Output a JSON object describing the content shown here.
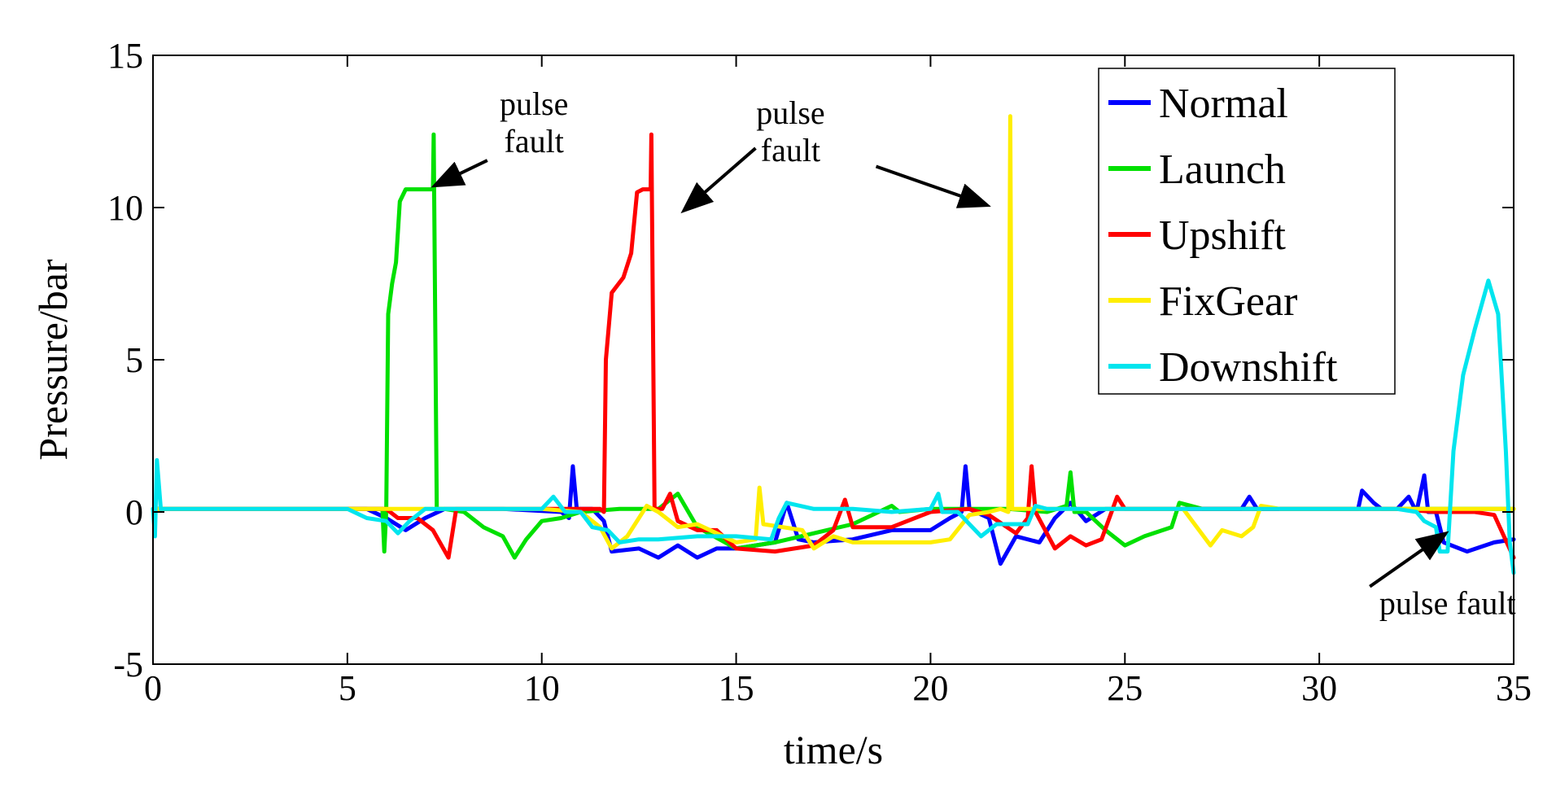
{
  "chart_data": {
    "type": "line",
    "title": "",
    "xlabel": "time/s",
    "ylabel": "Pressure/bar",
    "xlim": [
      0,
      35
    ],
    "ylim": [
      -5,
      15
    ],
    "xticks": [
      0,
      5,
      10,
      15,
      20,
      25,
      30,
      35
    ],
    "yticks": [
      -5,
      0,
      5,
      10,
      15
    ],
    "legend_position": "top-right",
    "grid": false,
    "series": [
      {
        "name": "Normal",
        "color": "#0000ff",
        "points": [
          [
            0,
            0.1
          ],
          [
            2,
            0.1
          ],
          [
            4,
            0.1
          ],
          [
            5.5,
            0.1
          ],
          [
            6,
            -0.2
          ],
          [
            6.5,
            -0.6
          ],
          [
            7,
            -0.2
          ],
          [
            7.5,
            0.1
          ],
          [
            9,
            0.1
          ],
          [
            10.5,
            0
          ],
          [
            10.7,
            -0.2
          ],
          [
            10.8,
            1.5
          ],
          [
            10.9,
            0.1
          ],
          [
            11.3,
            0.1
          ],
          [
            11.6,
            -0.3
          ],
          [
            11.8,
            -1.3
          ],
          [
            12.5,
            -1.2
          ],
          [
            13,
            -1.5
          ],
          [
            13.5,
            -1.1
          ],
          [
            14,
            -1.5
          ],
          [
            14.5,
            -1.2
          ],
          [
            15,
            -1.2
          ],
          [
            16,
            -1
          ],
          [
            16.3,
            0.3
          ],
          [
            16.6,
            -0.9
          ],
          [
            17,
            -1
          ],
          [
            18,
            -0.9
          ],
          [
            19,
            -0.6
          ],
          [
            20,
            -0.6
          ],
          [
            20.5,
            -0.2
          ],
          [
            20.8,
            0
          ],
          [
            20.9,
            1.5
          ],
          [
            21,
            0.1
          ],
          [
            21.5,
            -0.2
          ],
          [
            21.8,
            -1.7
          ],
          [
            22.2,
            -0.8
          ],
          [
            22.8,
            -1
          ],
          [
            23.2,
            -0.2
          ],
          [
            23.6,
            0.3
          ],
          [
            24,
            -0.3
          ],
          [
            24.5,
            0.1
          ],
          [
            28,
            0.1
          ],
          [
            28.2,
            0.5
          ],
          [
            28.4,
            0.1
          ],
          [
            31,
            0.1
          ],
          [
            31.1,
            0.7
          ],
          [
            31.4,
            0.3
          ],
          [
            31.6,
            0.1
          ],
          [
            32,
            0.1
          ],
          [
            32.3,
            0.5
          ],
          [
            32.5,
            0
          ],
          [
            32.7,
            1.2
          ],
          [
            32.8,
            0
          ],
          [
            33,
            0
          ],
          [
            33.2,
            -1
          ],
          [
            33.8,
            -1.3
          ],
          [
            34.5,
            -1
          ],
          [
            35,
            -0.9
          ]
        ]
      },
      {
        "name": "Launch",
        "color": "#00e000",
        "points": [
          [
            0,
            0.1
          ],
          [
            5.9,
            0.1
          ],
          [
            5.95,
            -1.3
          ],
          [
            6,
            0
          ],
          [
            6.05,
            6.5
          ],
          [
            6.15,
            7.5
          ],
          [
            6.25,
            8.2
          ],
          [
            6.35,
            10.2
          ],
          [
            6.5,
            10.6
          ],
          [
            7.2,
            10.6
          ],
          [
            7.22,
            12.4
          ],
          [
            7.3,
            0.1
          ],
          [
            7.5,
            0.1
          ],
          [
            8,
            0
          ],
          [
            8.5,
            -0.5
          ],
          [
            9,
            -0.8
          ],
          [
            9.3,
            -1.5
          ],
          [
            9.6,
            -0.9
          ],
          [
            10,
            -0.3
          ],
          [
            10.5,
            -0.2
          ],
          [
            11,
            0
          ],
          [
            12,
            0.1
          ],
          [
            13,
            0.1
          ],
          [
            13.5,
            0.6
          ],
          [
            14,
            -0.5
          ],
          [
            15,
            -1.2
          ],
          [
            16,
            -1
          ],
          [
            17,
            -0.7
          ],
          [
            18,
            -0.4
          ],
          [
            18.5,
            -0.1
          ],
          [
            19,
            0.2
          ],
          [
            19.2,
            0
          ],
          [
            20,
            0.1
          ],
          [
            21,
            0.1
          ],
          [
            22,
            0.1
          ],
          [
            23,
            0
          ],
          [
            23.5,
            0.2
          ],
          [
            23.6,
            1.3
          ],
          [
            23.7,
            0
          ],
          [
            24,
            0
          ],
          [
            24.5,
            -0.6
          ],
          [
            25,
            -1.1
          ],
          [
            25.5,
            -0.8
          ],
          [
            26.2,
            -0.5
          ],
          [
            26.4,
            0.3
          ],
          [
            27,
            0.1
          ],
          [
            35,
            0.1
          ]
        ]
      },
      {
        "name": "Upshift",
        "color": "#ff0000",
        "points": [
          [
            0,
            0.1
          ],
          [
            6,
            0.1
          ],
          [
            6.3,
            -0.2
          ],
          [
            6.8,
            -0.2
          ],
          [
            7.2,
            -0.6
          ],
          [
            7.6,
            -1.5
          ],
          [
            7.8,
            0.1
          ],
          [
            9,
            0.1
          ],
          [
            11.5,
            0.1
          ],
          [
            11.6,
            0
          ],
          [
            11.65,
            5
          ],
          [
            11.8,
            7.2
          ],
          [
            12.1,
            7.7
          ],
          [
            12.3,
            8.5
          ],
          [
            12.45,
            10.5
          ],
          [
            12.6,
            10.6
          ],
          [
            12.8,
            10.6
          ],
          [
            12.82,
            12.4
          ],
          [
            12.9,
            0.1
          ],
          [
            13.1,
            0.1
          ],
          [
            13.3,
            0.6
          ],
          [
            13.5,
            -0.3
          ],
          [
            14,
            -0.6
          ],
          [
            14.5,
            -0.6
          ],
          [
            15,
            -1.2
          ],
          [
            16,
            -1.3
          ],
          [
            17,
            -1.1
          ],
          [
            17.5,
            -0.6
          ],
          [
            17.8,
            0.4
          ],
          [
            18,
            -0.5
          ],
          [
            19,
            -0.5
          ],
          [
            20,
            0
          ],
          [
            21,
            0.1
          ],
          [
            21.5,
            -0.1
          ],
          [
            22.2,
            -0.7
          ],
          [
            22.5,
            -0.2
          ],
          [
            22.6,
            1.5
          ],
          [
            22.7,
            0
          ],
          [
            23.2,
            -1.2
          ],
          [
            23.6,
            -0.8
          ],
          [
            24,
            -1.1
          ],
          [
            24.4,
            -0.9
          ],
          [
            24.8,
            0.5
          ],
          [
            25,
            0.1
          ],
          [
            26,
            0.1
          ],
          [
            30,
            0.1
          ],
          [
            32,
            0.1
          ],
          [
            33,
            0
          ],
          [
            33.5,
            0
          ],
          [
            34,
            0
          ],
          [
            34.5,
            -0.1
          ],
          [
            35,
            -1.5
          ]
        ]
      },
      {
        "name": "FixGear",
        "color": "#ffee00",
        "points": [
          [
            0,
            0.1
          ],
          [
            6,
            0.1
          ],
          [
            8,
            0.1
          ],
          [
            10,
            0.1
          ],
          [
            11,
            0
          ],
          [
            11.5,
            -0.5
          ],
          [
            11.8,
            -1.2
          ],
          [
            12.2,
            -0.8
          ],
          [
            12.7,
            0.2
          ],
          [
            13,
            0
          ],
          [
            13.5,
            -0.5
          ],
          [
            14,
            -0.4
          ],
          [
            15,
            -1
          ],
          [
            15.5,
            -0.9
          ],
          [
            15.6,
            0.8
          ],
          [
            15.7,
            -0.4
          ],
          [
            16.2,
            -0.5
          ],
          [
            16.7,
            -0.6
          ],
          [
            17,
            -1.2
          ],
          [
            17.5,
            -0.8
          ],
          [
            18,
            -1
          ],
          [
            19,
            -1
          ],
          [
            20,
            -1
          ],
          [
            20.5,
            -0.9
          ],
          [
            21,
            -0.1
          ],
          [
            21.5,
            0
          ],
          [
            21.8,
            0.1
          ],
          [
            22,
            0
          ],
          [
            22.05,
            13
          ],
          [
            22.1,
            0.1
          ],
          [
            25,
            0.1
          ],
          [
            26.5,
            0.1
          ],
          [
            27.2,
            -1.1
          ],
          [
            27.5,
            -0.6
          ],
          [
            28,
            -0.8
          ],
          [
            28.3,
            -0.5
          ],
          [
            28.5,
            0.2
          ],
          [
            29,
            0.1
          ],
          [
            35,
            0.1
          ]
        ]
      },
      {
        "name": "Downshift",
        "color": "#00e5ee",
        "points": [
          [
            0,
            0.1
          ],
          [
            0.05,
            -0.8
          ],
          [
            0.1,
            1.7
          ],
          [
            0.2,
            0.1
          ],
          [
            2,
            0.1
          ],
          [
            4,
            0.1
          ],
          [
            5,
            0.1
          ],
          [
            5.5,
            -0.2
          ],
          [
            6,
            -0.3
          ],
          [
            6.3,
            -0.7
          ],
          [
            6.6,
            -0.3
          ],
          [
            7,
            0.1
          ],
          [
            7.4,
            0.1
          ],
          [
            8,
            0.1
          ],
          [
            9,
            0.1
          ],
          [
            10,
            0.1
          ],
          [
            10.3,
            0.5
          ],
          [
            10.6,
            0
          ],
          [
            11,
            0
          ],
          [
            11.3,
            -0.5
          ],
          [
            11.7,
            -0.6
          ],
          [
            12,
            -1
          ],
          [
            12.5,
            -0.9
          ],
          [
            13,
            -0.9
          ],
          [
            14,
            -0.8
          ],
          [
            15,
            -0.8
          ],
          [
            15.9,
            -0.9
          ],
          [
            16.1,
            -0.2
          ],
          [
            16.3,
            0.3
          ],
          [
            17,
            0.1
          ],
          [
            18,
            0.1
          ],
          [
            19,
            0
          ],
          [
            20,
            0.1
          ],
          [
            20.2,
            0.6
          ],
          [
            20.3,
            0
          ],
          [
            20.7,
            0
          ],
          [
            21.3,
            -0.8
          ],
          [
            21.7,
            -0.4
          ],
          [
            22.5,
            -0.4
          ],
          [
            22.7,
            0.2
          ],
          [
            23,
            0.1
          ],
          [
            24,
            0.1
          ],
          [
            25,
            0.1
          ],
          [
            30,
            0.1
          ],
          [
            32,
            0.1
          ],
          [
            32.5,
            0
          ],
          [
            32.7,
            -0.3
          ],
          [
            33,
            -0.5
          ],
          [
            33.1,
            -1.3
          ],
          [
            33.3,
            -1.3
          ],
          [
            33.45,
            2
          ],
          [
            33.7,
            4.5
          ],
          [
            34,
            6
          ],
          [
            34.35,
            7.6
          ],
          [
            34.6,
            6.5
          ],
          [
            34.8,
            2
          ],
          [
            34.9,
            -1
          ],
          [
            35,
            -2
          ]
        ]
      }
    ],
    "annotations": [
      {
        "lines": [
          "pulse",
          "fault"
        ],
        "text_at": [
          9.8,
          13.05
        ],
        "arrows": [
          {
            "from": [
              8.6,
              11.55
            ],
            "to": [
              7.3,
              10.75
            ]
          }
        ]
      },
      {
        "lines": [
          "pulse",
          "fault"
        ],
        "text_at": [
          16.4,
          12.75
        ],
        "arrows": [
          {
            "from": [
              15.5,
              11.95
            ],
            "to": [
              13.7,
              9.95
            ]
          },
          {
            "from": [
              18.6,
              11.35
            ],
            "to": [
              21.4,
              10.1
            ]
          }
        ]
      },
      {
        "lines": [
          "pulse fault"
        ],
        "text_at": [
          33.3,
          -3.35
        ],
        "arrows": [
          {
            "from": [
              31.3,
              -2.45
            ],
            "to": [
              33.2,
              -0.75
            ]
          }
        ]
      }
    ]
  }
}
